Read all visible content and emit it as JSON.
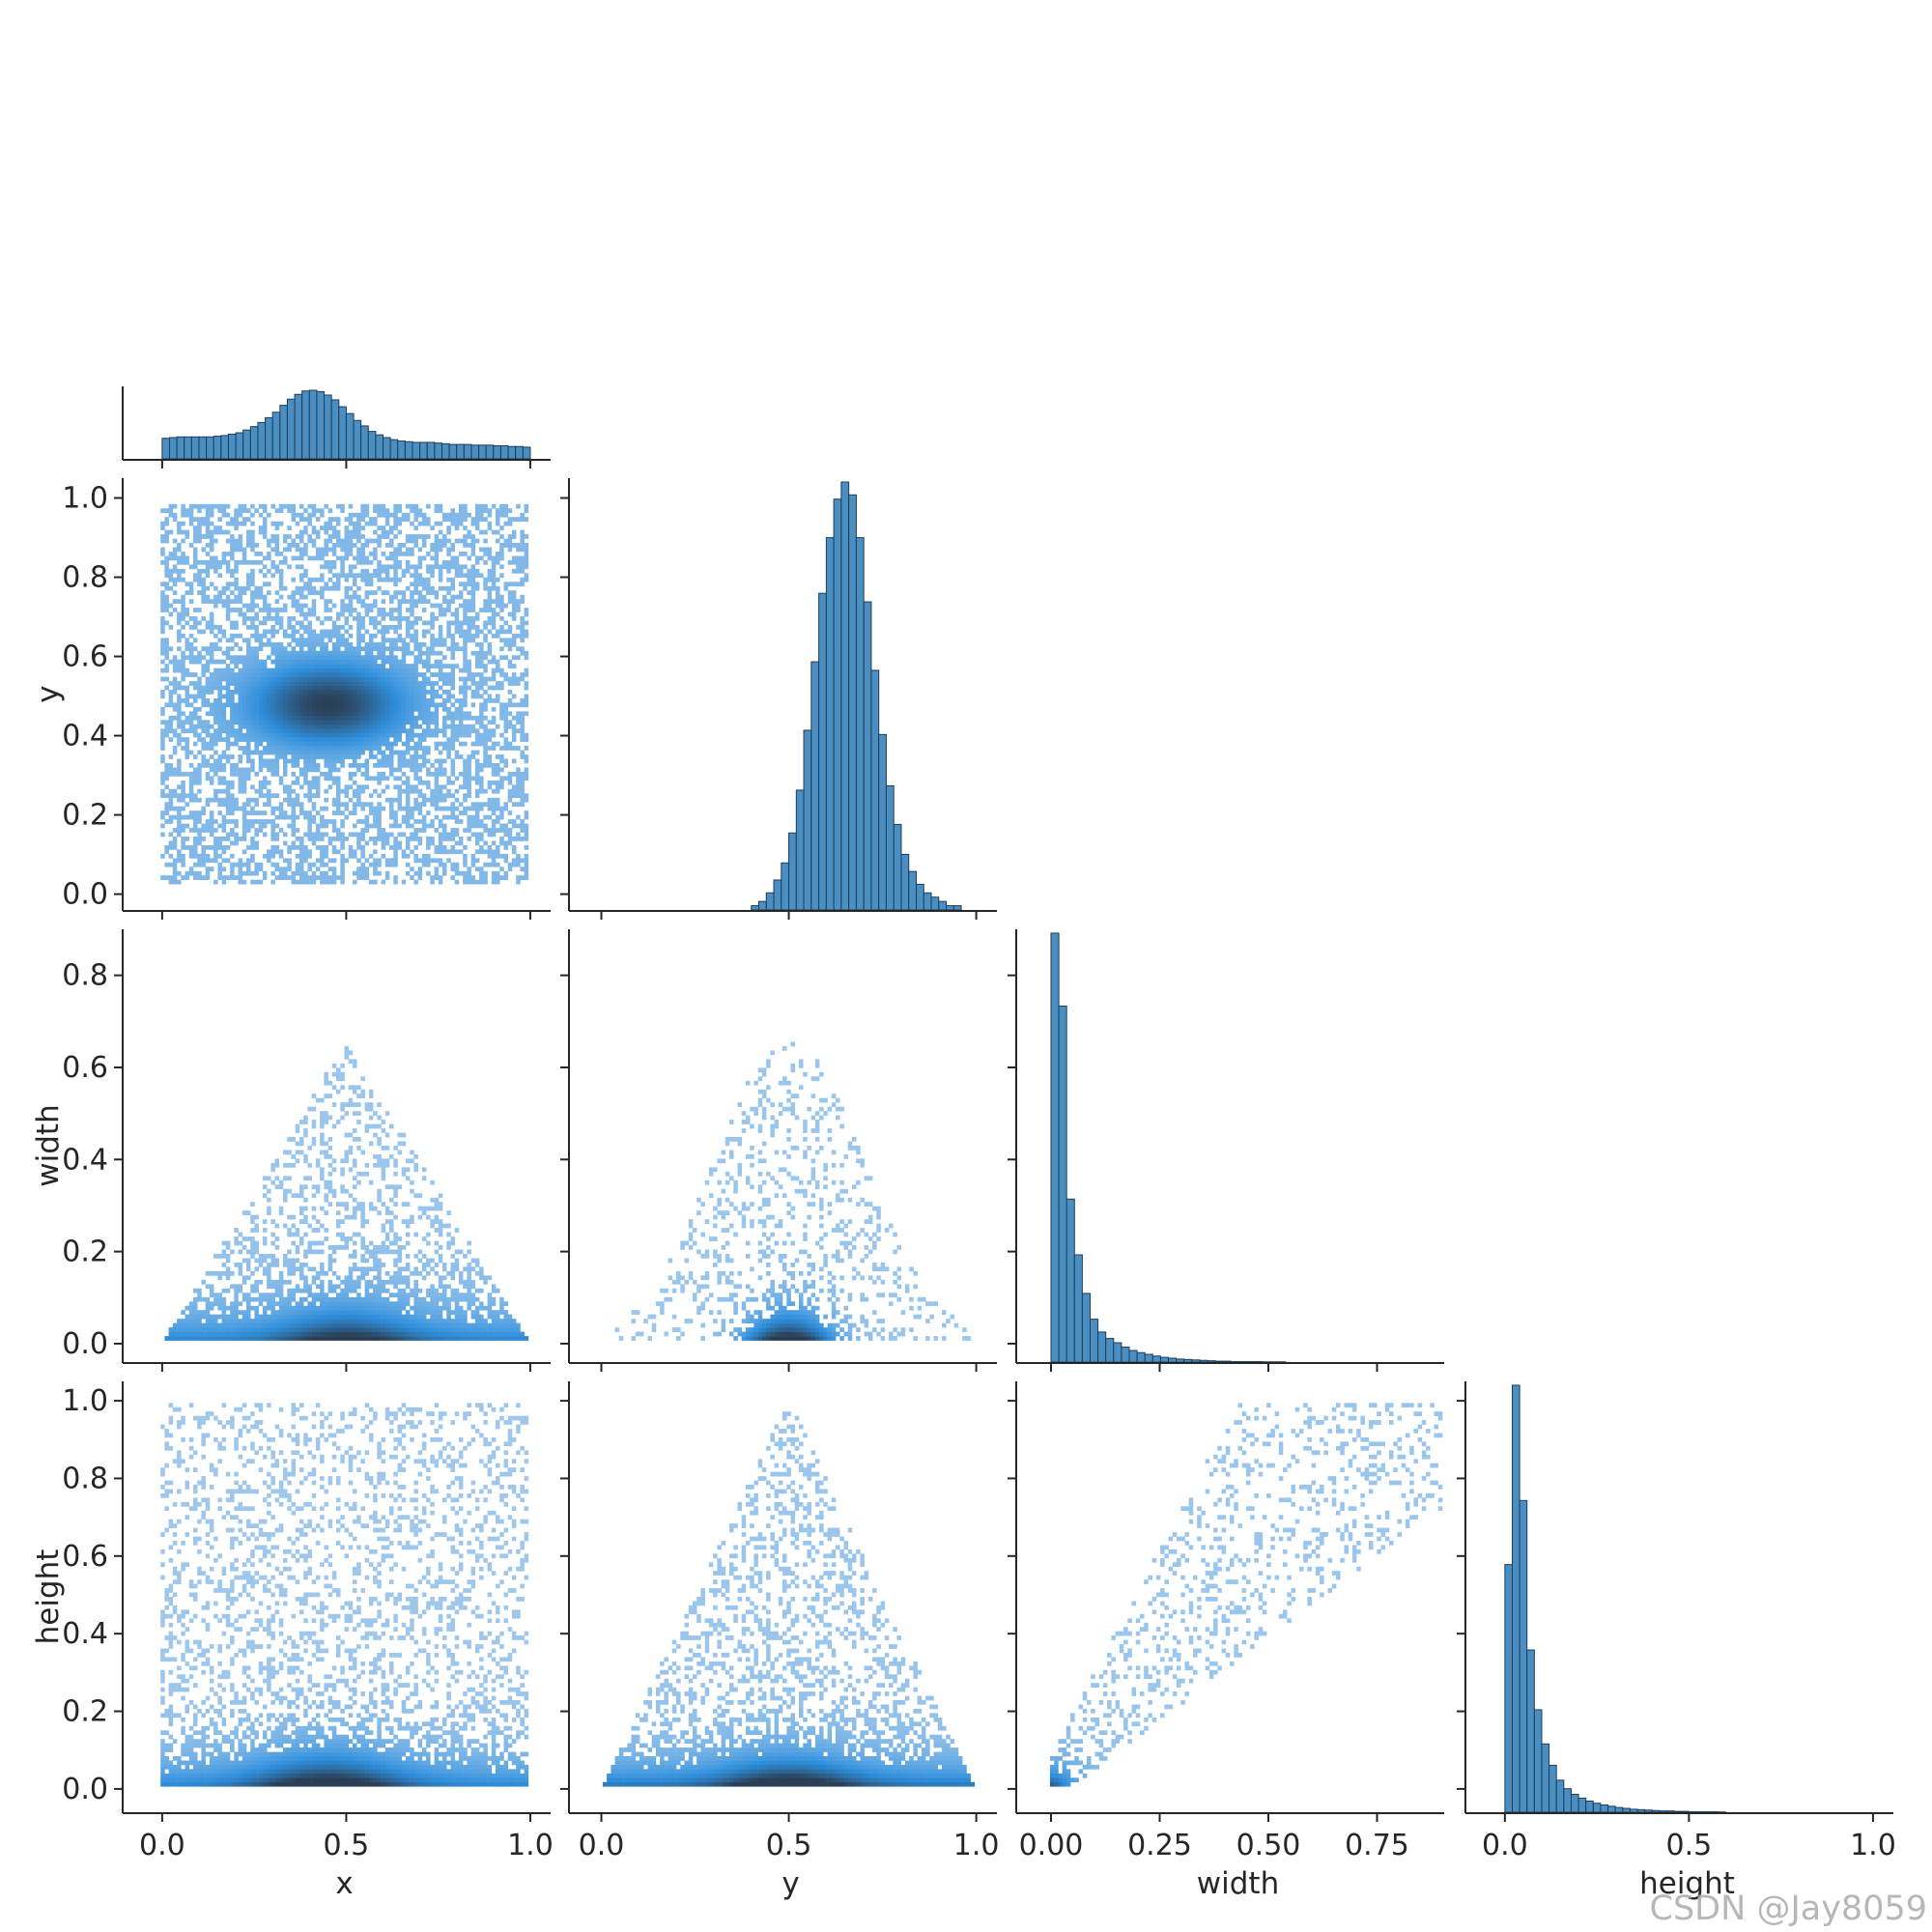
{
  "watermark": "CSDN @Jay8059",
  "colors": {
    "bar": "#4a8ec2",
    "bar_edge": "#1e3d5a",
    "density_low": "#b8d4f0",
    "density_mid": "#2f8fdc",
    "density_high": "#2a3f55"
  },
  "chart_data": {
    "type": "pairplot",
    "variables": [
      "x",
      "y",
      "width",
      "height"
    ],
    "corner": true,
    "diag_kind": "hist",
    "offdiag_kind": "hist2d",
    "axes": {
      "x": {
        "label": "x",
        "lim": [
          -0.06,
          1.05
        ],
        "ticks": [
          0.0,
          0.5,
          1.0
        ],
        "tick_labels": [
          "0.0",
          "0.5",
          "1.0"
        ]
      },
      "y": {
        "label": "y",
        "lim": [
          -0.04,
          1.05
        ],
        "ticks": [
          0.0,
          0.5,
          1.0
        ],
        "tick_labels": [
          "0.0",
          "0.5",
          "1.0"
        ],
        "row_ticks": [
          0.0,
          0.2,
          0.4,
          0.6,
          0.8,
          1.0
        ],
        "row_tick_labels": [
          "0.0",
          "0.2",
          "0.4",
          "0.6",
          "0.8",
          "1.0"
        ]
      },
      "width": {
        "label": "width",
        "lim": [
          -0.04,
          0.9
        ],
        "ticks": [
          0.0,
          0.25,
          0.5,
          0.75
        ],
        "tick_labels": [
          "0.00",
          "0.25",
          "0.50",
          "0.75"
        ],
        "row_ticks": [
          0.0,
          0.2,
          0.4,
          0.6,
          0.8
        ],
        "row_tick_labels": [
          "0.0",
          "0.2",
          "0.4",
          "0.6",
          "0.8"
        ]
      },
      "height": {
        "label": "height",
        "lim": [
          -0.06,
          1.05
        ],
        "ticks": [
          0.0,
          0.5,
          1.0
        ],
        "tick_labels": [
          "0.0",
          "0.5",
          "1.0"
        ],
        "row_ticks": [
          0.0,
          0.2,
          0.4,
          0.6,
          0.8,
          1.0
        ],
        "row_tick_labels": [
          "0.0",
          "0.2",
          "0.4",
          "0.6",
          "0.8",
          "1.0"
        ]
      }
    },
    "diagonal": [
      {
        "variable": "x",
        "bin_start": 0.0,
        "bin_width": 0.02,
        "counts": [
          0.3,
          0.31,
          0.32,
          0.32,
          0.32,
          0.32,
          0.32,
          0.33,
          0.34,
          0.36,
          0.38,
          0.42,
          0.47,
          0.53,
          0.6,
          0.68,
          0.78,
          0.87,
          0.94,
          0.99,
          1.0,
          0.98,
          0.93,
          0.86,
          0.76,
          0.66,
          0.56,
          0.48,
          0.4,
          0.35,
          0.31,
          0.28,
          0.26,
          0.25,
          0.24,
          0.24,
          0.24,
          0.23,
          0.22,
          0.21,
          0.21,
          0.21,
          0.2,
          0.2,
          0.2,
          0.19,
          0.19,
          0.18,
          0.18,
          0.17
        ]
      },
      {
        "variable": "y",
        "bin_start": 0.0,
        "bin_width": 0.02,
        "counts": [
          0,
          0,
          0,
          0,
          0,
          0,
          0,
          0,
          0,
          0,
          0,
          0,
          0,
          0,
          0,
          0,
          0,
          0,
          0,
          0,
          0.01,
          0.02,
          0.04,
          0.07,
          0.11,
          0.18,
          0.28,
          0.42,
          0.58,
          0.74,
          0.87,
          0.96,
          1.0,
          0.97,
          0.87,
          0.72,
          0.56,
          0.41,
          0.29,
          0.2,
          0.13,
          0.09,
          0.06,
          0.04,
          0.03,
          0.02,
          0.01,
          0.01,
          0,
          0
        ]
      },
      {
        "variable": "width",
        "bin_start": 0.0,
        "bin_width": 0.018,
        "counts": [
          1.0,
          0.83,
          0.38,
          0.25,
          0.16,
          0.1,
          0.07,
          0.055,
          0.045,
          0.035,
          0.027,
          0.022,
          0.018,
          0.014,
          0.011,
          0.009,
          0.007,
          0.006,
          0.005,
          0.004,
          0.003,
          0.002,
          0.002,
          0.001,
          0.001,
          0.001,
          0.001,
          0.0005,
          0.0005,
          0.0005
        ]
      },
      {
        "variable": "height",
        "bin_start": 0.0,
        "bin_width": 0.02,
        "counts": [
          0.58,
          1.0,
          0.73,
          0.38,
          0.24,
          0.16,
          0.11,
          0.075,
          0.055,
          0.042,
          0.033,
          0.026,
          0.021,
          0.017,
          0.014,
          0.011,
          0.009,
          0.007,
          0.006,
          0.005,
          0.004,
          0.003,
          0.003,
          0.002,
          0.002,
          0.001,
          0.001,
          0.001,
          0.001,
          0.0005
        ]
      }
    ],
    "off_diagonal": [
      {
        "x_var": "x",
        "y_var": "y",
        "shape": "gaussian_blob",
        "center": [
          0.45,
          0.48
        ],
        "spread": [
          0.3,
          0.15
        ]
      },
      {
        "x_var": "x",
        "y_var": "width",
        "shape": "triangle",
        "apex_x": 0.5,
        "max_y": 0.66,
        "dense_y": 0.02
      },
      {
        "x_var": "y",
        "y_var": "width",
        "shape": "mound",
        "center_x": 0.5,
        "max_y": 0.66,
        "dense_y": 0.02
      },
      {
        "x_var": "x",
        "y_var": "height",
        "shape": "band",
        "dense_y": 0.03,
        "max_y": 1.0
      },
      {
        "x_var": "y",
        "y_var": "height",
        "shape": "triangle",
        "apex_x": 0.5,
        "max_y": 1.0,
        "dense_y": 0.03
      },
      {
        "x_var": "width",
        "y_var": "height",
        "shape": "diagonal_cloud",
        "dense_at": [
          0.02,
          0.03
        ],
        "slope": 1.3
      }
    ]
  }
}
